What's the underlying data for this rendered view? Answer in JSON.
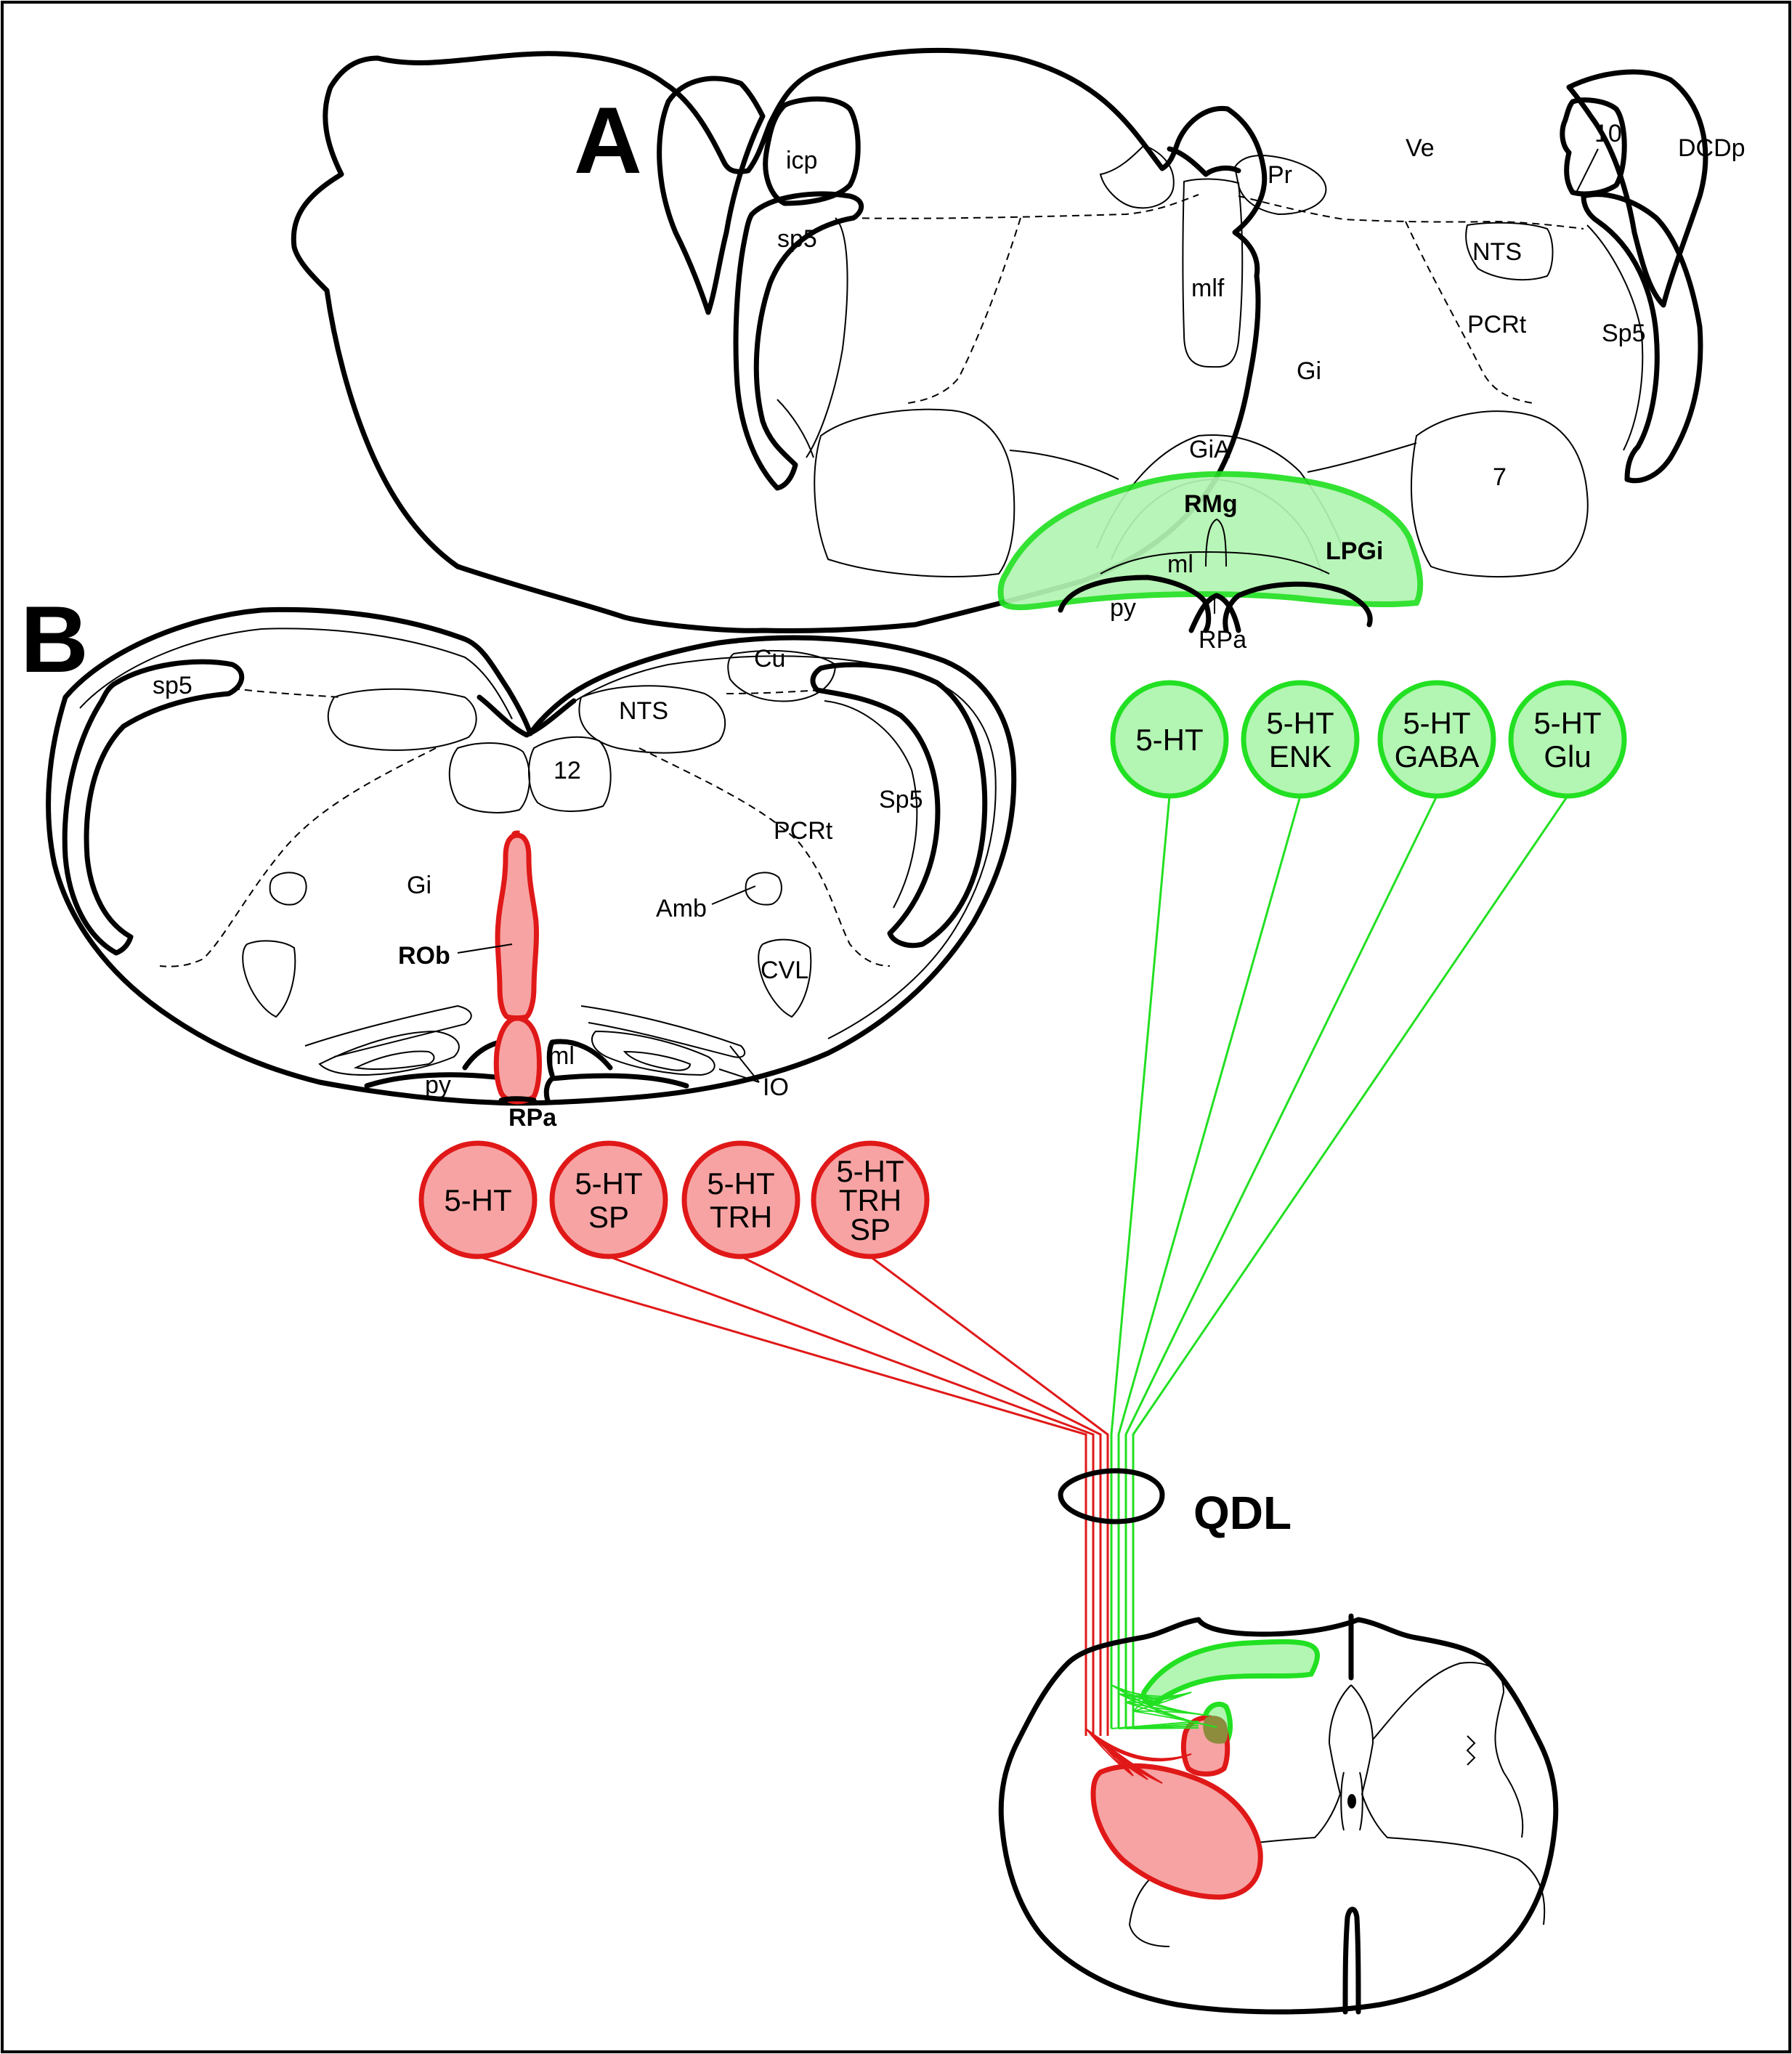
{
  "panels": {
    "a": "A",
    "b": "B"
  },
  "section_a": {
    "labels": {
      "icp": "icp",
      "sp5": "sp5",
      "ve": "Ve",
      "pr": "Pr",
      "ten": "10",
      "dcdp": "DCDp",
      "nts": "NTS",
      "mlf": "mlf",
      "pcrt": "PCRt",
      "sp5_nucleus": "Sp5",
      "gi": "Gi",
      "gia": "GiA",
      "seven": "7",
      "rmg": "RMg",
      "lpgi": "LPGi",
      "ml": "ml",
      "py": "py",
      "rpa": "RPa"
    }
  },
  "section_b": {
    "labels": {
      "sp5": "sp5",
      "cu": "Cu",
      "nts": "NTS",
      "twelve": "12",
      "sp5_nucleus": "Sp5",
      "pcrt": "PCRt",
      "gi": "Gi",
      "amb": "Amb",
      "rob": "ROb",
      "cvl": "CVL",
      "ml": "ml",
      "py": "py",
      "io": "IO",
      "rpa": "RPa"
    }
  },
  "green_groups": [
    {
      "lines": [
        "5-HT"
      ]
    },
    {
      "lines": [
        "5-HT",
        "ENK"
      ]
    },
    {
      "lines": [
        "5-HT",
        "GABA"
      ]
    },
    {
      "lines": [
        "5-HT",
        "Glu"
      ]
    }
  ],
  "red_groups": [
    {
      "lines": [
        "5-HT"
      ]
    },
    {
      "lines": [
        "5-HT",
        "SP"
      ]
    },
    {
      "lines": [
        "5-HT",
        "TRH"
      ]
    },
    {
      "lines": [
        "5-HT",
        "TRH",
        "SP"
      ]
    }
  ],
  "qdl": "QDL",
  "colors": {
    "green_stroke": "#22e022",
    "green_fill": "#b3f5b3",
    "red_stroke": "#e01818",
    "red_fill": "#f7a3a3",
    "overlap_fill": "#8c8c3c"
  }
}
